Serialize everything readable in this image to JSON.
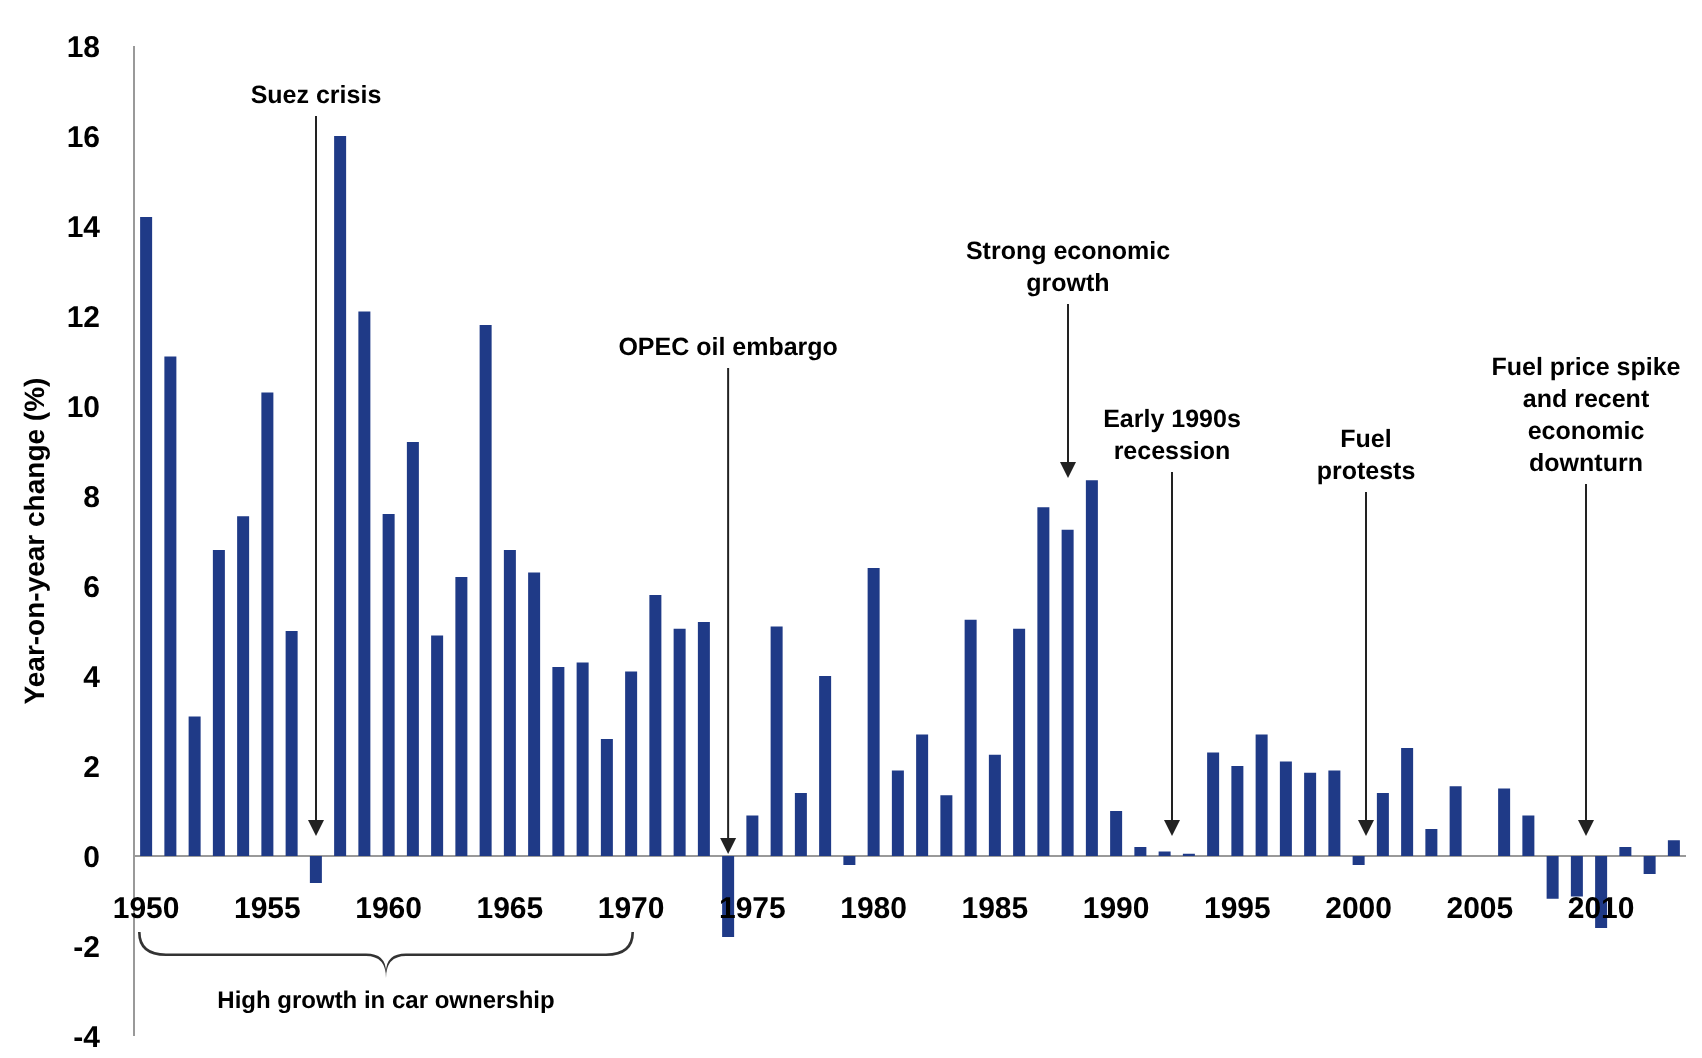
{
  "chart_data": {
    "type": "bar",
    "ylabel": "Year-on-year change (%)",
    "x": [
      1950,
      1951,
      1952,
      1953,
      1954,
      1955,
      1956,
      1957,
      1958,
      1959,
      1960,
      1961,
      1962,
      1963,
      1964,
      1965,
      1966,
      1967,
      1968,
      1969,
      1970,
      1971,
      1972,
      1973,
      1974,
      1975,
      1976,
      1977,
      1978,
      1979,
      1980,
      1981,
      1982,
      1983,
      1984,
      1985,
      1986,
      1987,
      1988,
      1989,
      1990,
      1991,
      1992,
      1993,
      1994,
      1995,
      1996,
      1997,
      1998,
      1999,
      2000,
      2001,
      2002,
      2003,
      2004,
      2005,
      2006,
      2007,
      2008,
      2009,
      2010,
      2011,
      2012,
      2013
    ],
    "values": [
      14.2,
      11.1,
      3.1,
      6.8,
      7.55,
      10.3,
      5.0,
      -0.6,
      16.0,
      12.1,
      7.6,
      9.2,
      4.9,
      6.2,
      11.8,
      6.8,
      6.3,
      4.2,
      4.3,
      2.6,
      4.1,
      5.8,
      5.05,
      5.2,
      -1.8,
      0.9,
      5.1,
      1.4,
      4.0,
      -0.2,
      6.4,
      1.9,
      2.7,
      1.35,
      5.25,
      2.25,
      5.05,
      7.75,
      7.25,
      8.35,
      1.0,
      0.2,
      0.1,
      0.05,
      2.3,
      2.0,
      2.7,
      2.1,
      1.85,
      1.9,
      -0.2,
      1.4,
      2.4,
      0.6,
      1.55,
      0,
      1.5,
      0.9,
      -0.95,
      -0.9,
      -1.6,
      0.2,
      -0.4,
      0.35
    ],
    "color": "#1f3a87",
    "xlim": [
      1949.5,
      2013.5
    ],
    "xticks": [
      1950,
      1955,
      1960,
      1965,
      1970,
      1975,
      1980,
      1985,
      1990,
      1995,
      2000,
      2005,
      2010
    ],
    "ylim": [
      -4,
      18
    ],
    "yticks": [
      -4,
      -2,
      0,
      2,
      4,
      6,
      8,
      10,
      12,
      14,
      16,
      18
    ],
    "grid": false,
    "annotations": [
      "Suez crisis",
      {
        "text": "OPEC oil embargo",
        "x": 1974,
        "y": 0
      },
      "Strong economic\ngrowth",
      "Early 1990s\nrecession",
      "Fuel\nprotests",
      "Fuel price spike\nand recent\neconomic\ndownturn",
      "High growth in car ownership"
    ]
  }
}
